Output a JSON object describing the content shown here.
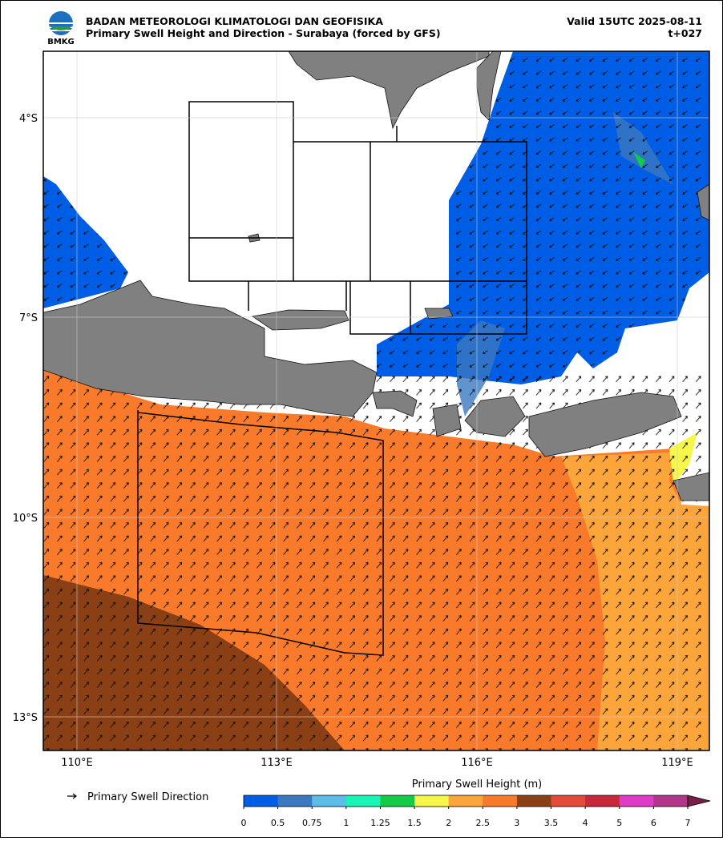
{
  "header": {
    "logo_text": "BMKG",
    "agency": "BADAN METEOROLOGI KLIMATOLOGI DAN GEOFISIKA",
    "product": "Primary Swell Height and Direction - Surabaya (forced by GFS)",
    "valid": "Valid 15UTC 2025-08-11",
    "lead": "t+027"
  },
  "map": {
    "lat_labels": [
      "4°S",
      "7°S",
      "10°S",
      "13°S"
    ],
    "lon_labels": [
      "110°E",
      "113°E",
      "116°E",
      "119°E"
    ]
  },
  "legend": {
    "text": "Primary Swell Direction"
  },
  "colorbar": {
    "title": "Primary Swell Height (m)",
    "ticks": [
      0,
      0.5,
      0.75,
      1,
      1.25,
      1.5,
      2,
      2.5,
      3,
      3.5,
      4,
      5,
      6,
      7
    ],
    "colors": [
      "#005ee6",
      "#3a78c0",
      "#5bbde8",
      "#19f5b5",
      "#12cc47",
      "#f7f74a",
      "#fca53a",
      "#f97a2a",
      "#8b3f15",
      "#e44a3a",
      "#c8283a",
      "#e03ac8",
      "#b0368a",
      "#7a1f4a"
    ]
  }
}
